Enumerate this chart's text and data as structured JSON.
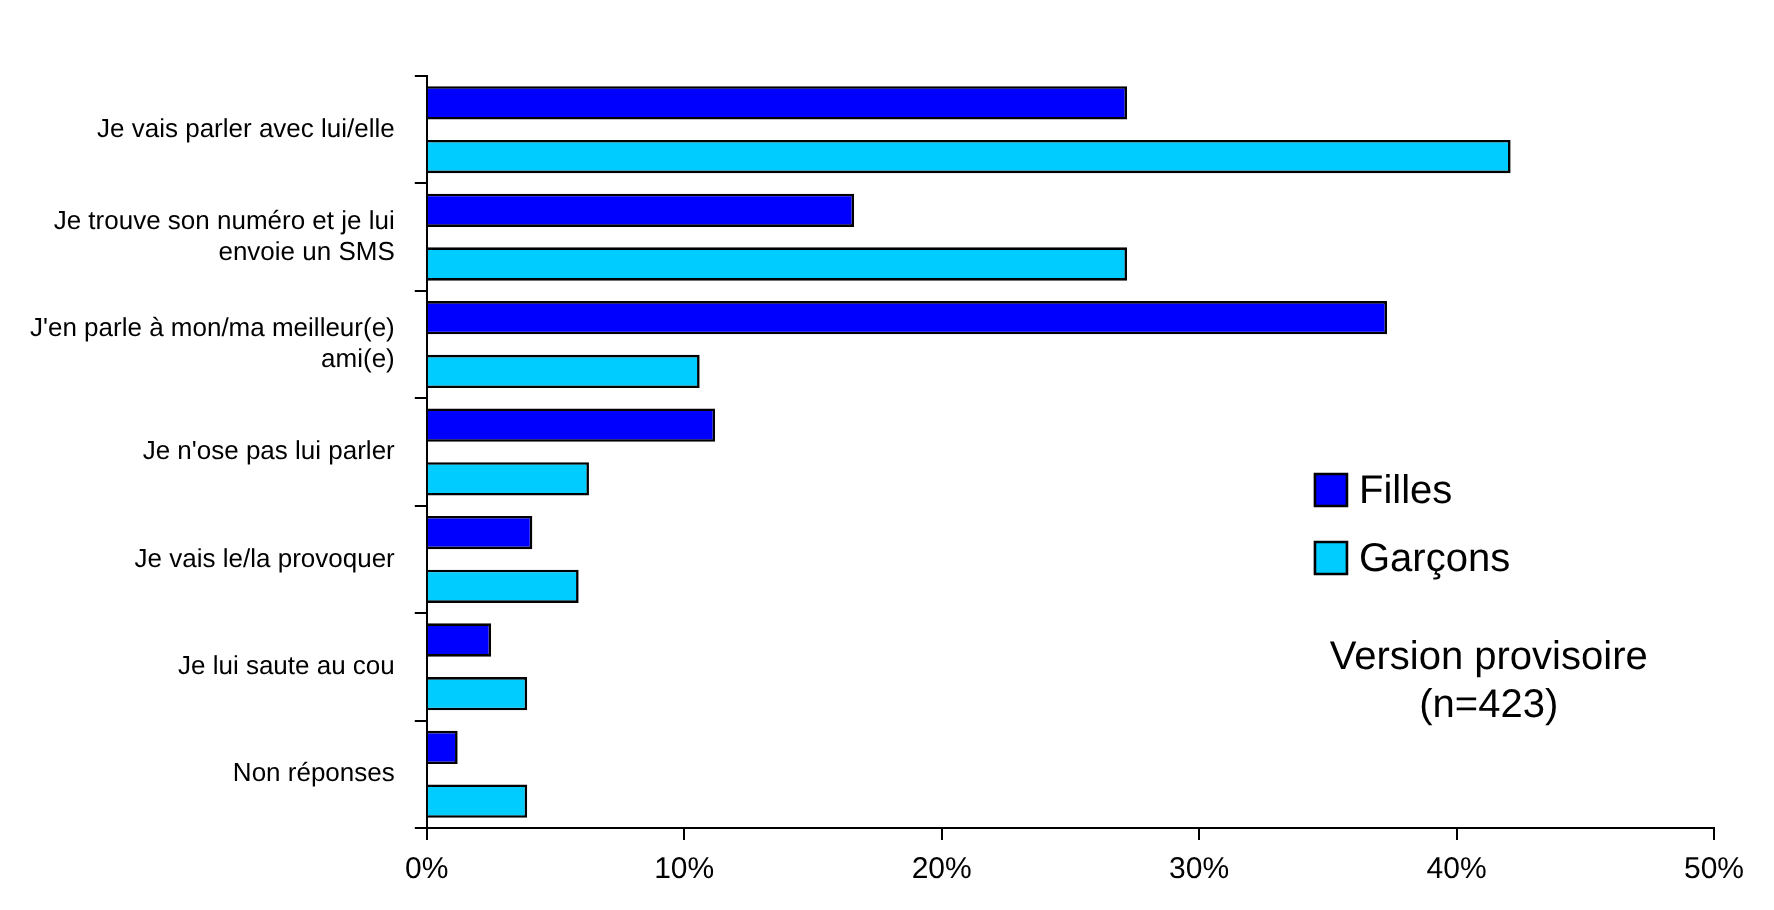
{
  "chart_data": {
    "type": "bar",
    "orientation": "horizontal",
    "categories": [
      "Je vais parler avec lui/elle",
      "Je trouve son numéro et je lui envoie un SMS",
      "J'en parle à mon/ma meilleur(e) ami(e)",
      "Je n'ose pas lui parler",
      "Je vais le/la provoquer",
      "Je lui saute au cou",
      "Non réponses"
    ],
    "series": [
      {
        "name": "Filles",
        "color": "#0000ff",
        "values": [
          27.2,
          16.6,
          37.3,
          11.2,
          4.1,
          2.5,
          1.2
        ]
      },
      {
        "name": "Garçons",
        "color": "#00ccff",
        "values": [
          42.1,
          27.2,
          10.6,
          6.3,
          5.9,
          3.9,
          3.9
        ]
      }
    ],
    "xlim": [
      0,
      50
    ],
    "xticks": [
      {
        "value": 0,
        "label": "0%"
      },
      {
        "value": 10,
        "label": "10%"
      },
      {
        "value": 20,
        "label": "20%"
      },
      {
        "value": 30,
        "label": "30%"
      },
      {
        "value": 40,
        "label": "40%"
      },
      {
        "value": 50,
        "label": "50%"
      }
    ],
    "grid": false,
    "legend": "right",
    "annotations": [
      "Version provisoire\n(n=423)"
    ]
  }
}
